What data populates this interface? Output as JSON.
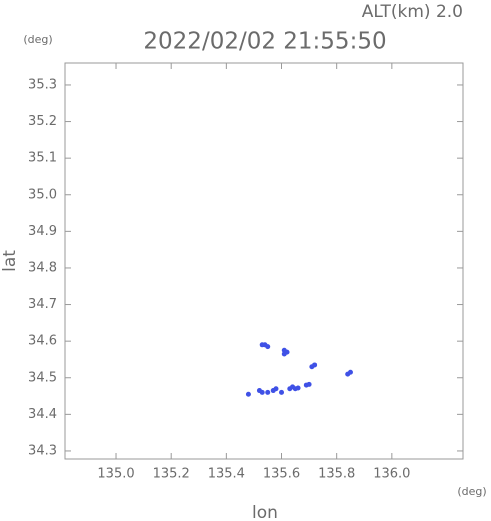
{
  "chart_data": {
    "type": "scatter",
    "annotation": "ALT(km) 2.0",
    "title": "2022/02/02 21:55:50",
    "y_unit": "(deg)",
    "x_unit": "(deg)",
    "xlabel": "lon",
    "ylabel": "lat",
    "color": "#3f51e6",
    "xlim": [
      134.815,
      136.258
    ],
    "ylim": [
      34.278,
      35.36
    ],
    "xticks": [
      {
        "value": 135,
        "label": "135.0"
      },
      135.2,
      135.4,
      135.6,
      135.8,
      {
        "value": 136,
        "label": "136.0"
      }
    ],
    "yticks": [
      34.3,
      34.4,
      34.5,
      34.6,
      34.7,
      34.8,
      34.9,
      {
        "value": 35,
        "label": "35.0"
      },
      35.1,
      35.2,
      35.3
    ],
    "x": [
      135.53,
      135.54,
      135.55,
      135.61,
      135.61,
      135.62,
      135.72,
      135.71,
      135.84,
      135.85,
      135.48,
      135.52,
      135.53,
      135.55,
      135.57,
      135.58,
      135.6,
      135.63,
      135.64,
      135.65,
      135.66,
      135.69,
      135.7
    ],
    "y": [
      34.59,
      34.59,
      34.585,
      34.575,
      34.565,
      34.57,
      34.535,
      34.53,
      34.51,
      34.515,
      34.455,
      34.465,
      34.46,
      34.46,
      34.465,
      34.47,
      34.46,
      34.47,
      34.475,
      34.47,
      34.472,
      34.48,
      34.482
    ]
  }
}
